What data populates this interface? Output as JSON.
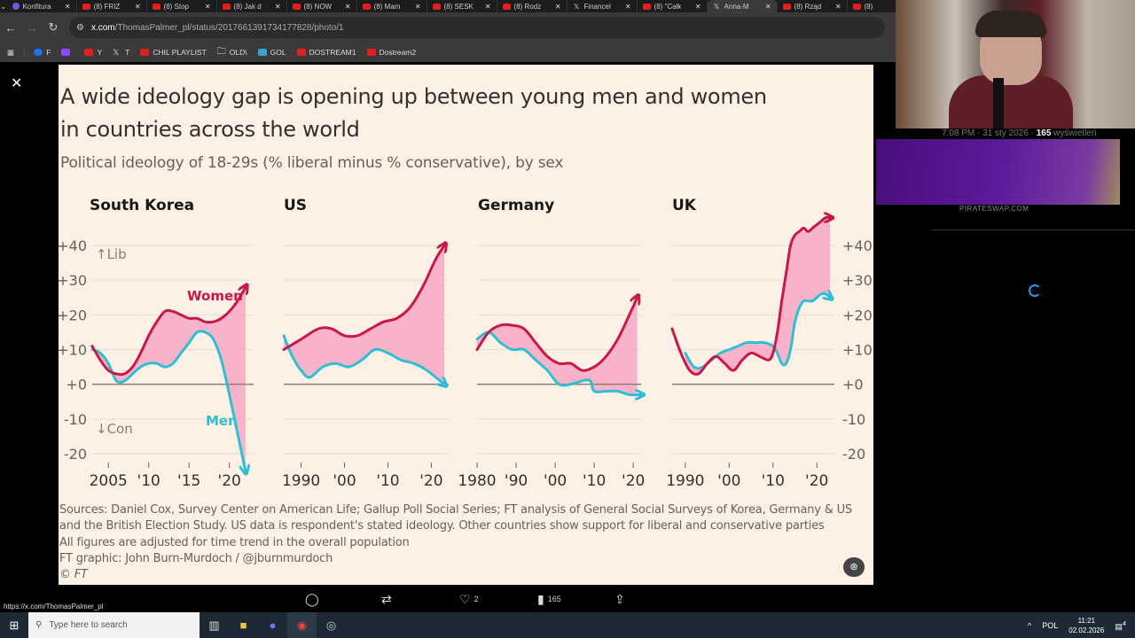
{
  "browser": {
    "tabs": [
      {
        "icon": "s-icon",
        "label": "Konfitura",
        "active": false
      },
      {
        "icon": "youtube-icon",
        "label": "(8) FRIZ",
        "active": false
      },
      {
        "icon": "youtube-icon",
        "label": "(8) Stop",
        "active": false
      },
      {
        "icon": "youtube-icon",
        "label": "(8) Jak d",
        "active": false
      },
      {
        "icon": "youtube-icon",
        "label": "(8) NOW",
        "active": false
      },
      {
        "icon": "youtube-icon",
        "label": "(8) Mam",
        "active": false
      },
      {
        "icon": "youtube-icon",
        "label": "(8) SESK",
        "active": false
      },
      {
        "icon": "youtube-icon",
        "label": "(8) Rodz",
        "active": false
      },
      {
        "icon": "x-icon",
        "label": "Financel",
        "active": false
      },
      {
        "icon": "youtube-icon",
        "label": "(8) \"Całk",
        "active": false
      },
      {
        "icon": "x-icon",
        "label": "Anna-M",
        "active": true
      },
      {
        "icon": "youtube-icon",
        "label": "(8) Rząd",
        "active": false
      },
      {
        "icon": "youtube-icon",
        "label": "(8)",
        "active": false
      }
    ],
    "url_host": "x.com",
    "url_path": "/ThomasPalmer_pl/status/2017661391734177828/photo/1",
    "bookmarks": [
      {
        "icon": "facebook-icon",
        "label": "F"
      },
      {
        "icon": "twitch-icon",
        "label": ""
      },
      {
        "icon": "youtube-icon",
        "label": "Y"
      },
      {
        "icon": "x-icon",
        "label": "T"
      },
      {
        "icon": "youtube-icon",
        "label": "CHIL PLAYLIST"
      },
      {
        "icon": "folder-icon",
        "label": "OLD\\"
      },
      {
        "icon": "g-icon",
        "label": "GOL"
      },
      {
        "icon": "youtube-icon",
        "label": "DOSTREAM1"
      },
      {
        "icon": "youtube-icon",
        "label": "Dostream2"
      }
    ],
    "status_url": "https://x.com/ThomasPalmer_pl"
  },
  "graphic": {
    "title_line1": "A wide ideology gap is opening up between young men and women",
    "title_line2": "in countries across the world",
    "subtitle": "Political ideology of 18-29s (% liberal minus % conservative), by sex",
    "notes": [
      "Sources: Daniel Cox, Survey Center on American Life; Gallup Poll Social Series; FT analysis of General Social Surveys of Korea, Germany & US",
      "and the British Election Study. US data is respondent's stated ideology. Other countries show support for liberal and conservative parties",
      "All figures are adjusted for time trend in the overall population",
      "FT graphic: John Burn-Murdoch / @jburnmurdoch",
      "© FT"
    ],
    "alt_button": "ALT"
  },
  "chart_data": {
    "type": "line",
    "title": "A wide ideology gap is opening up between young men and women in countries across the world",
    "subtitle": "Political ideology of 18-29s (% liberal minus % conservative), by sex",
    "ylabel": "% liberal minus % conservative",
    "ylim": [
      -20,
      40
    ],
    "yticks": [
      "+40",
      "+30",
      "+20",
      "+10",
      "+0",
      "-10",
      "-20"
    ],
    "annotations": {
      "up": "↑Lib",
      "down": "↓Con",
      "women_label": "Women",
      "men_label": "Men"
    },
    "colors": {
      "women": "#c8184a",
      "men": "#2ebfd2",
      "gap": "#f7a8c4",
      "zero": "#8a7e74",
      "grid": "#e8ddd2"
    },
    "panels": [
      {
        "name": "South Korea",
        "xlim": [
          2003,
          2023
        ],
        "xticks": [
          {
            "v": 2005,
            "label": "2005"
          },
          {
            "v": 2010,
            "label": "'10"
          },
          {
            "v": 2015,
            "label": "'15"
          },
          {
            "v": 2020,
            "label": "'20"
          }
        ],
        "series": [
          {
            "name": "Women",
            "x": [
              2003,
              2004,
              2005,
              2006,
              2007,
              2008,
              2009,
              2010,
              2011,
              2012,
              2013,
              2014,
              2015,
              2016,
              2017,
              2018,
              2019,
              2020,
              2021,
              2022
            ],
            "values": [
              11,
              7,
              4,
              3,
              3,
              5,
              9,
              14,
              18,
              21,
              21,
              20,
              19,
              19,
              18,
              18,
              19,
              21,
              24,
              28
            ]
          },
          {
            "name": "Men",
            "x": [
              2003,
              2004,
              2005,
              2006,
              2007,
              2008,
              2009,
              2010,
              2011,
              2012,
              2013,
              2014,
              2015,
              2016,
              2017,
              2018,
              2019,
              2020,
              2021,
              2022
            ],
            "values": [
              10,
              9,
              6,
              1,
              1,
              3,
              5,
              6,
              6,
              5,
              6,
              9,
              12,
              15,
              15,
              13,
              7,
              -3,
              -14,
              -25
            ]
          }
        ]
      },
      {
        "name": "US",
        "xlim": [
          1986,
          2024
        ],
        "xticks": [
          {
            "v": 1990,
            "label": "1990"
          },
          {
            "v": 2000,
            "label": "'00"
          },
          {
            "v": 2010,
            "label": "'10"
          },
          {
            "v": 2020,
            "label": "'20"
          }
        ],
        "series": [
          {
            "name": "Women",
            "x": [
              1986,
              1990,
              1994,
              1997,
              2000,
              2003,
              2006,
              2009,
              2012,
              2015,
              2018,
              2021,
              2023
            ],
            "values": [
              10,
              13,
              16,
              16,
              14,
              14,
              16,
              18,
              19,
              22,
              28,
              36,
              40
            ]
          },
          {
            "name": "Men",
            "x": [
              1986,
              1988,
              1990,
              1992,
              1995,
              1998,
              2001,
              2004,
              2007,
              2010,
              2013,
              2016,
              2019,
              2022,
              2023
            ],
            "values": [
              14,
              8,
              4,
              2,
              5,
              6,
              5,
              7,
              10,
              9,
              7,
              6,
              4,
              1,
              0
            ]
          }
        ]
      },
      {
        "name": "Germany",
        "xlim": [
          1980,
          2022
        ],
        "xticks": [
          {
            "v": 1980,
            "label": "1980"
          },
          {
            "v": 1990,
            "label": "'90"
          },
          {
            "v": 2000,
            "label": "'00"
          },
          {
            "v": 2010,
            "label": "'10"
          },
          {
            "v": 2020,
            "label": "'20"
          }
        ],
        "series": [
          {
            "name": "Women",
            "x": [
              1980,
              1983,
              1986,
              1989,
              1992,
              1995,
              1998,
              2001,
              2004,
              2007,
              2010,
              2013,
              2016,
              2019,
              2021
            ],
            "values": [
              10,
              15,
              17,
              17,
              16,
              12,
              8,
              6,
              6,
              4,
              5,
              8,
              13,
              20,
              25
            ]
          },
          {
            "name": "Men",
            "x": [
              1980,
              1983,
              1986,
              1989,
              1992,
              1995,
              1998,
              2001,
              2004,
              2007,
              2009,
              2010,
              2013,
              2016,
              2019,
              2022
            ],
            "values": [
              13,
              15,
              12,
              10,
              10,
              7,
              4,
              0,
              0,
              1,
              1,
              -2,
              -2,
              -2,
              -3,
              -3
            ]
          }
        ]
      },
      {
        "name": "UK",
        "xlim": [
          1987,
          2024
        ],
        "xticks": [
          {
            "v": 1990,
            "label": "1990"
          },
          {
            "v": 2000,
            "label": "'00"
          },
          {
            "v": 2010,
            "label": "'10"
          },
          {
            "v": 2020,
            "label": "'20"
          }
        ],
        "series": [
          {
            "name": "Women",
            "x": [
              1987,
              1989,
              1991,
              1993,
              1995,
              1997,
              1999,
              2001,
              2003,
              2005,
              2007,
              2009,
              2010,
              2011,
              2012,
              2013,
              2014,
              2015,
              2016,
              2017,
              2018,
              2019,
              2020,
              2021,
              2022,
              2023
            ],
            "values": [
              16,
              9,
              4,
              3,
              6,
              8,
              6,
              4,
              7,
              9,
              8,
              7,
              9,
              15,
              24,
              32,
              40,
              43,
              44,
              45,
              44,
              45,
              46,
              47,
              48,
              48
            ]
          },
          {
            "name": "Men",
            "x": [
              1990,
              1992,
              1994,
              1996,
              1998,
              2000,
              2002,
              2004,
              2006,
              2008,
              2010,
              2011,
              2012,
              2013,
              2014,
              2015,
              2016,
              2017,
              2018,
              2019,
              2020,
              2021,
              2022,
              2023
            ],
            "values": [
              9,
              5,
              5,
              7,
              9,
              10,
              11,
              12,
              12,
              12,
              11,
              9,
              6,
              6,
              10,
              18,
              22,
              24,
              24,
              24,
              25,
              26,
              26,
              25
            ]
          }
        ]
      }
    ],
    "legend": "inline labels"
  },
  "tweet": {
    "actions": [
      {
        "icon": "reply-icon",
        "label": ""
      },
      {
        "icon": "retweet-icon",
        "label": ""
      },
      {
        "icon": "like-icon",
        "label": "2"
      },
      {
        "icon": "views-icon",
        "label": "165"
      },
      {
        "icon": "share-icon",
        "label": ""
      }
    ],
    "meta_time": "7:08 PM · 31 sty 2026 · ",
    "meta_views": "165",
    "meta_views_label": " wyświetleń",
    "promo_text": "PIRATESWAP.COM"
  },
  "taskbar": {
    "search_placeholder": "Type here to search",
    "language": "POL",
    "time": "11:21",
    "date": "02.02.2026",
    "notifications": "4"
  }
}
